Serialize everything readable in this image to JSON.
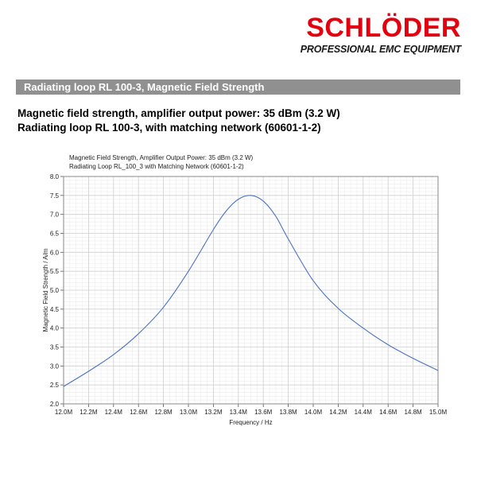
{
  "logo": {
    "name": "SCHLÖDER",
    "tagline": "PROFESSIONAL EMC EQUIPMENT"
  },
  "section_title": "Radiating loop RL 100-3, Magnetic Field Strength",
  "headings": [
    "Magnetic field strength, amplifier output power: 35 dBm (3.2 W)",
    "Radiating loop RL 100-3, with matching network (60601-1-2)"
  ],
  "colors": {
    "brand_red": "#e3000f",
    "section_bar": "#909090",
    "series_line": "#4a72c4"
  },
  "chart_data": {
    "type": "line",
    "title": "Magnetic Field Strength, Amplifier Output Power: 35 dBm (3.2 W)",
    "subtitle": "Radiating Loop RL_100_3 with Matching Network (60601-1-2)",
    "xlabel": "Frequency / Hz",
    "ylabel": "Magnetic Field Strength / A/m",
    "xlim": [
      12.0,
      15.0
    ],
    "ylim": [
      2.0,
      8.0
    ],
    "x_unit_suffix": "M",
    "xticks": [
      "12.0M",
      "12.2M",
      "12.4M",
      "12.6M",
      "12.8M",
      "13.0M",
      "13.2M",
      "13.4M",
      "13.6M",
      "13.8M",
      "14.0M",
      "14.2M",
      "14.4M",
      "14.6M",
      "14.8M",
      "15.0M"
    ],
    "yticks": [
      "2.0",
      "2.5",
      "3.0",
      "3.5",
      "4.0",
      "4.5",
      "5.0",
      "5.5",
      "6.0",
      "6.5",
      "7.0",
      "7.5",
      "8.0"
    ],
    "grid": true,
    "series": [
      {
        "x": [
          12.0,
          12.2,
          12.4,
          12.6,
          12.8,
          13.0,
          13.2,
          13.3,
          13.4,
          13.5,
          13.6,
          13.7,
          13.8,
          14.0,
          14.2,
          14.4,
          14.6,
          14.8,
          15.0
        ],
        "y": [
          2.46,
          2.86,
          3.3,
          3.85,
          4.55,
          5.5,
          6.6,
          7.08,
          7.4,
          7.5,
          7.35,
          6.95,
          6.35,
          5.25,
          4.52,
          4.0,
          3.56,
          3.2,
          2.88
        ]
      }
    ]
  }
}
